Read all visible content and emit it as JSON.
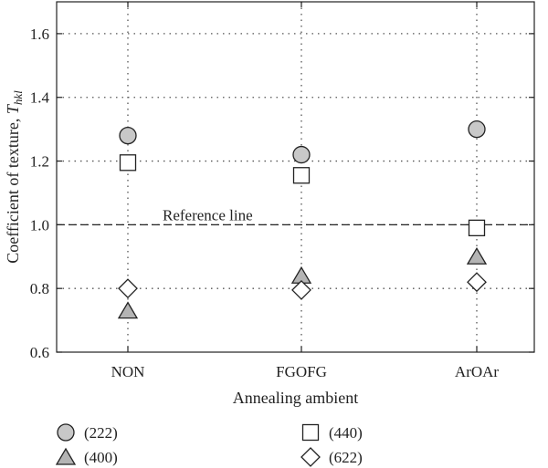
{
  "chart_data": {
    "type": "scatter",
    "categories": [
      "NON",
      "FGOFG",
      "ArOAr"
    ],
    "xlabel": "Annealing ambient",
    "ylabel_text": "Coefficient of texture, ",
    "ylabel_symbol": "T",
    "ylabel_subscript": "hkl",
    "ylim": [
      0.6,
      1.7
    ],
    "yticks": [
      0.6,
      0.8,
      1.0,
      1.2,
      1.4,
      1.6
    ],
    "grid": true,
    "reference_line": {
      "y": 1.0,
      "label": "Reference line"
    },
    "series": [
      {
        "name": "(222)",
        "marker": "circle",
        "fill": "#c8c8c8",
        "values": [
          1.28,
          1.22,
          1.3
        ]
      },
      {
        "name": "(440)",
        "marker": "square",
        "fill": "#ffffff",
        "values": [
          1.195,
          1.155,
          0.99
        ]
      },
      {
        "name": "(400)",
        "marker": "triangle",
        "fill": "#b4b4b4",
        "values": [
          0.73,
          0.84,
          0.9
        ]
      },
      {
        "name": "(622)",
        "marker": "diamond",
        "fill": "#ffffff",
        "values": [
          0.8,
          0.795,
          0.82
        ]
      }
    ],
    "legend_position": "bottom"
  }
}
